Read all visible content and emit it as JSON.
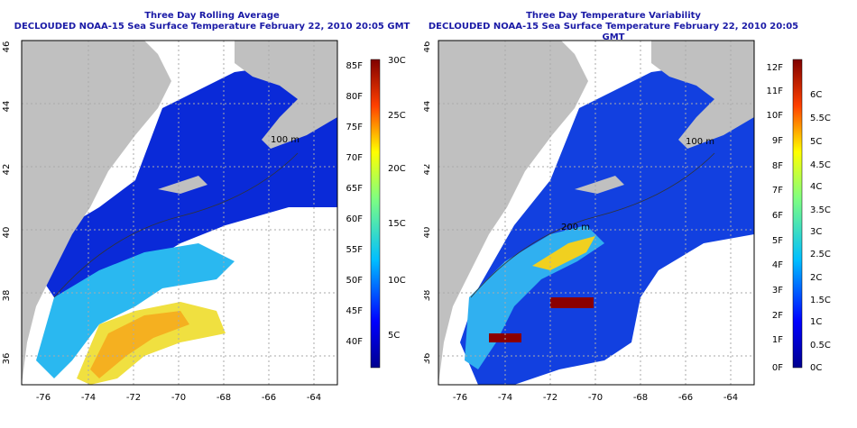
{
  "panels": [
    {
      "title_line1": "Three Day Rolling Average",
      "title_line2": "DECLOUDED NOAA-15 Sea Surface Temperature February 22, 2010 20:05 GMT",
      "contour_label": "100 m",
      "lat_ticks": [
        "46",
        "44",
        "42",
        "40",
        "38",
        "36"
      ],
      "lon_ticks": [
        "-76",
        "-74",
        "-72",
        "-70",
        "-68",
        "-66",
        "-64"
      ],
      "colorbar_left": [
        "85F",
        "80F",
        "75F",
        "70F",
        "65F",
        "60F",
        "55F",
        "50F",
        "45F",
        "40F"
      ],
      "colorbar_right": [
        "30C",
        "25C",
        "20C",
        "15C",
        "10C",
        "5C"
      ]
    },
    {
      "title_line1": "Three Day Temperature Variability",
      "title_line2": "DECLOUDED NOAA-15 Sea Surface Temperature February 22, 2010 20:05 GMT",
      "contour_label": "100 m",
      "contour_label2": "200 m",
      "lat_ticks": [
        "46",
        "44",
        "42",
        "40",
        "38",
        "36"
      ],
      "lon_ticks": [
        "-76",
        "-74",
        "-72",
        "-70",
        "-68",
        "-66",
        "-64"
      ],
      "colorbar_left": [
        "12F",
        "11F",
        "10F",
        "9F",
        "8F",
        "7F",
        "6F",
        "5F",
        "4F",
        "3F",
        "2F",
        "1F",
        "0F"
      ],
      "colorbar_right": [
        "6C",
        "5.5C",
        "5C",
        "4.5C",
        "4C",
        "3.5C",
        "3C",
        "2.5C",
        "2C",
        "1.5C",
        "1C",
        "0.5C",
        "0C"
      ]
    }
  ],
  "colors": {
    "land": "#c0c0c0",
    "ocean_cold": "#0a1ecc",
    "grid": "#aaaaaa",
    "title": "#1a1aa6"
  }
}
